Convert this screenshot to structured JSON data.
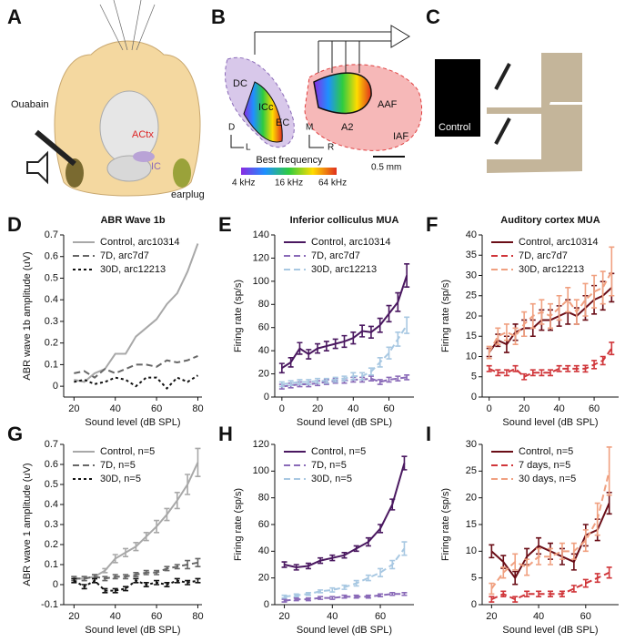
{
  "illustrations": {
    "a": {
      "label": "A",
      "syringe": "Ouabain",
      "cortex": "ACtx",
      "colliculus": "IC",
      "plug": "earplug"
    },
    "b": {
      "label": "B",
      "dc": "DC",
      "icc": "ICc",
      "ec": "EC",
      "d": "D",
      "l": "L",
      "m": "M",
      "r": "R",
      "a2": "A2",
      "aaf": "AAF",
      "iaf": "IAF",
      "colorbar_title": "Best frequency",
      "colorbar_low": "4 kHz",
      "colorbar_mid": "16 kHz",
      "colorbar_high": "64 kHz",
      "scale": "0.5 mm"
    },
    "c": {
      "label": "C",
      "control": "Control"
    }
  },
  "chart_data": [
    {
      "type": "line",
      "label": "D",
      "title": "ABR Wave 1b",
      "x_label": "Sound level (dB SPL)",
      "y_label": "ABR wave 1b amplitude (uV)",
      "x": [
        20,
        25,
        30,
        35,
        40,
        45,
        50,
        55,
        60,
        65,
        70,
        75,
        80
      ],
      "xlim": [
        15,
        82
      ],
      "xticks": [
        20,
        40,
        60,
        80
      ],
      "ylim": [
        -0.05,
        0.7
      ],
      "yticks": [
        0,
        0.1,
        0.2,
        0.3,
        0.4,
        0.5,
        0.6,
        0.7
      ],
      "legend": "upper left",
      "series": [
        {
          "name": "Control, arc10314",
          "color": "#a8a8a8",
          "line_style": "solid",
          "values": [
            0.03,
            0.02,
            0.06,
            0.08,
            0.15,
            0.15,
            0.23,
            0.27,
            0.31,
            0.38,
            0.43,
            0.53,
            0.66
          ]
        },
        {
          "name": "7D, arc7d7",
          "color": "#666666",
          "line_style": "dashed",
          "values": [
            0.06,
            0.07,
            0.04,
            0.08,
            0.06,
            0.08,
            0.1,
            0.1,
            0.09,
            0.12,
            0.11,
            0.12,
            0.14
          ]
        },
        {
          "name": "30D, arc12213",
          "color": "#111111",
          "line_style": "dotted",
          "values": [
            0.02,
            0.03,
            0.01,
            0.02,
            0.04,
            0.03,
            0.0,
            0.04,
            0.04,
            -0.01,
            0.04,
            0.02,
            0.05
          ]
        }
      ]
    },
    {
      "type": "line",
      "label": "E",
      "title": "Inferior colliculus MUA",
      "x_label": "Sound level (dB SPL)",
      "y_label": "Firing rate (sp/s)",
      "x": [
        0,
        5,
        10,
        15,
        20,
        25,
        30,
        35,
        40,
        45,
        50,
        55,
        60,
        65,
        70
      ],
      "xlim": [
        -4,
        74
      ],
      "xticks": [
        0,
        20,
        40,
        60
      ],
      "ylim": [
        0,
        140
      ],
      "yticks": [
        0,
        20,
        40,
        60,
        80,
        100,
        120,
        140
      ],
      "legend": "upper left",
      "series": [
        {
          "name": "Control, arc10314",
          "color": "#4a1860",
          "line_style": "solid",
          "values": [
            25,
            30,
            42,
            37,
            42,
            44,
            46,
            48,
            51,
            57,
            56,
            62,
            72,
            82,
            105
          ],
          "errors": [
            4,
            4,
            5,
            4,
            4,
            4,
            4,
            5,
            5,
            5,
            5,
            6,
            7,
            8,
            10
          ]
        },
        {
          "name": "7D, arc7d7",
          "color": "#8a6ab8",
          "line_style": "dashed",
          "values": [
            9,
            10,
            11,
            11,
            12,
            13,
            14,
            14,
            15,
            15,
            16,
            13,
            15,
            16,
            17
          ],
          "errors": [
            2,
            2,
            2,
            2,
            2,
            2,
            2,
            2,
            2,
            2,
            2,
            2,
            2,
            2,
            2
          ]
        },
        {
          "name": "30D, arc12213",
          "color": "#a8c8e2",
          "line_style": "dashed",
          "values": [
            11,
            12,
            13,
            13,
            14,
            14,
            15,
            16,
            18,
            18,
            22,
            30,
            38,
            50,
            62
          ],
          "errors": [
            2,
            2,
            2,
            2,
            2,
            2,
            2,
            2,
            3,
            3,
            3,
            4,
            5,
            6,
            7
          ]
        }
      ]
    },
    {
      "type": "line",
      "label": "F",
      "title": "Auditory cortex MUA",
      "x_label": "Sound level (dB SPL)",
      "y_label": "Firing rate (sp/s)",
      "x": [
        0,
        5,
        10,
        15,
        20,
        25,
        30,
        35,
        40,
        45,
        50,
        55,
        60,
        65,
        70
      ],
      "xlim": [
        -4,
        74
      ],
      "xticks": [
        0,
        20,
        40,
        60
      ],
      "ylim": [
        0,
        40
      ],
      "yticks": [
        0,
        5,
        10,
        15,
        20,
        25,
        30,
        35,
        40
      ],
      "legend": "upper left",
      "series": [
        {
          "name": "Control, arc10314",
          "color": "#6a0d16",
          "line_style": "solid",
          "values": [
            11,
            14,
            13,
            16,
            17,
            17,
            19,
            19,
            20,
            21,
            20,
            22,
            24,
            25,
            27
          ],
          "errors": [
            1,
            1.5,
            2,
            2,
            2,
            2,
            2.5,
            2.5,
            2.5,
            3,
            2,
            3,
            3.5,
            3.5,
            3.5
          ]
        },
        {
          "name": "7D, arc7d7",
          "color": "#d0363a",
          "line_style": "dashed",
          "values": [
            7,
            6,
            6,
            7,
            5,
            6,
            6,
            6,
            7,
            7,
            7,
            7,
            8,
            9,
            12
          ],
          "errors": [
            0.7,
            0.7,
            0.7,
            0.7,
            0.7,
            0.7,
            0.7,
            0.7,
            0.7,
            0.7,
            0.7,
            0.8,
            1,
            1,
            1.5
          ]
        },
        {
          "name": "30D, arc12213",
          "color": "#f0a080",
          "line_style": "dashed",
          "values": [
            11,
            15,
            16,
            15,
            18,
            20,
            21,
            20,
            22,
            24,
            21,
            24,
            26,
            27,
            31
          ],
          "errors": [
            1.5,
            2,
            2,
            2,
            3,
            3,
            3,
            3,
            3,
            3,
            3,
            4,
            4,
            4,
            6
          ]
        }
      ]
    },
    {
      "type": "line",
      "label": "G",
      "x_label": "Sound level (dB SPL)",
      "y_label": "ABR wave 1 amplitude (uV)",
      "x": [
        20,
        25,
        30,
        35,
        40,
        45,
        50,
        55,
        60,
        65,
        70,
        75,
        80
      ],
      "xlim": [
        15,
        82
      ],
      "xticks": [
        20,
        40,
        60,
        80
      ],
      "ylim": [
        -0.1,
        0.7
      ],
      "yticks": [
        -0.1,
        0,
        0.1,
        0.2,
        0.3,
        0.4,
        0.5,
        0.6,
        0.7
      ],
      "legend": "upper left",
      "series": [
        {
          "name": "Control, n=5",
          "color": "#a8a8a8",
          "line_style": "solid",
          "values": [
            0.03,
            0.03,
            0.04,
            0.07,
            0.13,
            0.16,
            0.19,
            0.24,
            0.29,
            0.35,
            0.42,
            0.5,
            0.61
          ],
          "errors": [
            0.01,
            0.01,
            0.01,
            0.01,
            0.02,
            0.02,
            0.02,
            0.02,
            0.03,
            0.03,
            0.04,
            0.05,
            0.07
          ]
        },
        {
          "name": "7D, n=5",
          "color": "#666666",
          "line_style": "dashed",
          "values": [
            0.03,
            0.03,
            0.04,
            0.03,
            0.04,
            0.04,
            0.05,
            0.06,
            0.06,
            0.08,
            0.09,
            0.1,
            0.11
          ],
          "errors": [
            0.01,
            0.01,
            0.01,
            0.01,
            0.01,
            0.01,
            0.01,
            0.01,
            0.01,
            0.01,
            0.01,
            0.02,
            0.02
          ]
        },
        {
          "name": "30D, n=5",
          "color": "#111111",
          "line_style": "dotted",
          "values": [
            0.02,
            -0.01,
            0.02,
            -0.03,
            -0.03,
            -0.02,
            0.02,
            0.0,
            0.01,
            0.0,
            0.02,
            0.01,
            0.02
          ],
          "errors": [
            0.01,
            0.01,
            0.01,
            0.01,
            0.01,
            0.01,
            0.01,
            0.01,
            0.01,
            0.01,
            0.01,
            0.01,
            0.01
          ]
        }
      ]
    },
    {
      "type": "line",
      "label": "H",
      "x_label": "Sound level (dB SPL)",
      "y_label": "Firing rate (sp/s)",
      "x": [
        20,
        25,
        30,
        35,
        40,
        45,
        50,
        55,
        60,
        65,
        70
      ],
      "xlim": [
        16,
        74
      ],
      "xticks": [
        20,
        40,
        60
      ],
      "ylim": [
        0,
        120
      ],
      "yticks": [
        0,
        20,
        40,
        60,
        80,
        100,
        120
      ],
      "legend": "upper left",
      "series": [
        {
          "name": "Control, n=5",
          "color": "#4a1860",
          "line_style": "solid",
          "values": [
            30,
            28,
            29,
            33,
            35,
            37,
            42,
            47,
            57,
            75,
            106
          ],
          "errors": [
            2,
            2,
            2,
            2,
            2,
            2,
            2,
            3,
            3,
            4,
            5
          ]
        },
        {
          "name": "7D, n=5",
          "color": "#8a6ab8",
          "line_style": "dashed",
          "values": [
            3,
            4,
            4,
            5,
            5,
            6,
            6,
            6,
            7,
            8,
            8
          ],
          "errors": [
            1,
            1,
            1,
            1,
            1,
            1,
            1,
            1,
            1,
            1,
            1
          ]
        },
        {
          "name": "30D, n=5",
          "color": "#a8c8e2",
          "line_style": "dashed",
          "values": [
            6,
            7,
            8,
            10,
            11,
            13,
            16,
            20,
            24,
            30,
            42
          ],
          "errors": [
            1,
            1,
            1,
            1,
            1.5,
            1.5,
            2,
            2,
            3,
            3,
            5
          ]
        }
      ]
    },
    {
      "type": "line",
      "label": "I",
      "x_label": "Sound level (dB SPL)",
      "y_label": "Firing rate (sp/s)",
      "x": [
        20,
        25,
        30,
        35,
        40,
        45,
        50,
        55,
        60,
        65,
        70
      ],
      "xlim": [
        16,
        74
      ],
      "xticks": [
        20,
        40,
        60
      ],
      "ylim": [
        0,
        30
      ],
      "yticks": [
        0,
        5,
        10,
        15,
        20,
        25,
        30
      ],
      "legend": "upper left",
      "series": [
        {
          "name": "Control, n=5",
          "color": "#6a0d16",
          "line_style": "solid",
          "values": [
            10,
            8,
            5,
            9,
            11,
            10,
            9,
            8,
            13,
            14,
            19
          ],
          "errors": [
            1.2,
            1.2,
            1.2,
            1.5,
            1.5,
            1.5,
            1.5,
            1.5,
            2,
            2,
            2
          ]
        },
        {
          "name": "7 days, n=5",
          "color": "#d0363a",
          "line_style": "dashed",
          "values": [
            1,
            2,
            1,
            2,
            2,
            2,
            2,
            3,
            4,
            5,
            6
          ],
          "errors": [
            0.5,
            0.5,
            0.5,
            0.5,
            0.5,
            0.5,
            0.5,
            0.6,
            0.7,
            0.8,
            1
          ]
        },
        {
          "name": "30 days, n=5",
          "color": "#f0a080",
          "line_style": "dashed",
          "values": [
            3,
            6,
            8,
            7,
            9,
            9,
            10,
            10,
            12,
            16,
            25
          ],
          "errors": [
            1,
            1,
            1.5,
            1.5,
            1.5,
            1.5,
            1.5,
            1.5,
            2,
            3,
            4.5
          ]
        }
      ]
    }
  ]
}
